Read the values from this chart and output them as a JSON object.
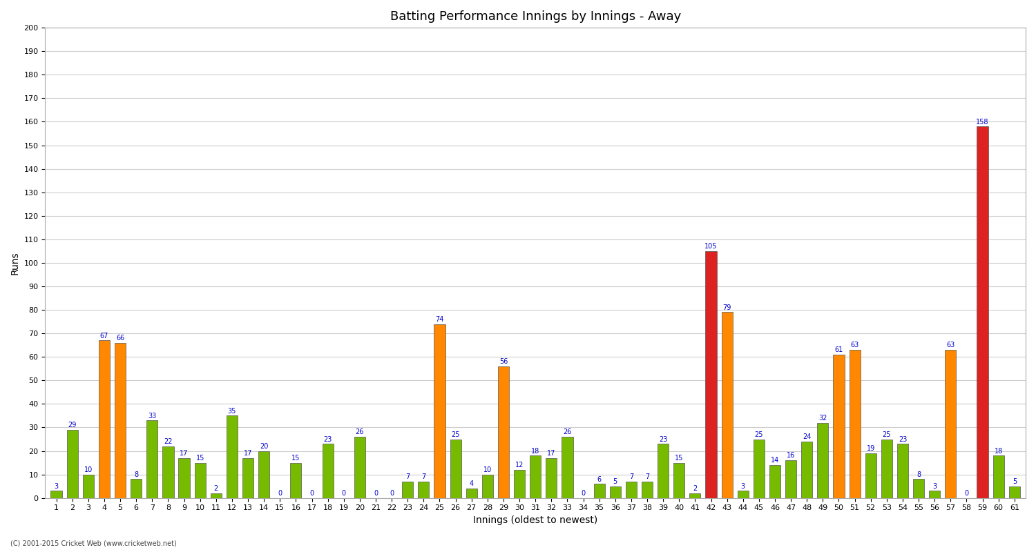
{
  "title": "Batting Performance Innings by Innings - Away",
  "xlabel": "Innings (oldest to newest)",
  "ylabel": "Runs",
  "ylim": [
    0,
    200
  ],
  "yticks": [
    0,
    10,
    20,
    30,
    40,
    50,
    60,
    70,
    80,
    90,
    100,
    110,
    120,
    130,
    140,
    150,
    160,
    170,
    180,
    190,
    200
  ],
  "footer": "(C) 2001-2015 Cricket Web (www.cricketweb.net)",
  "values": [
    3,
    29,
    10,
    67,
    66,
    8,
    33,
    22,
    17,
    15,
    2,
    35,
    17,
    20,
    0,
    15,
    0,
    23,
    0,
    26,
    0,
    0,
    7,
    7,
    74,
    25,
    4,
    10,
    56,
    12,
    18,
    17,
    26,
    0,
    6,
    5,
    7,
    7,
    23,
    15,
    2,
    105,
    79,
    3,
    25,
    14,
    16,
    24,
    32,
    61,
    63,
    19,
    25,
    23,
    8,
    3,
    63,
    0,
    158,
    18,
    5
  ],
  "labels": [
    "1",
    "2",
    "3",
    "4",
    "5",
    "6",
    "7",
    "8",
    "9",
    "10",
    "11",
    "12",
    "13",
    "14",
    "15",
    "16",
    "17",
    "18",
    "19",
    "20",
    "21",
    "22",
    "23",
    "24",
    "25",
    "26",
    "27",
    "28",
    "29",
    "30",
    "31",
    "32",
    "33",
    "34",
    "35",
    "36",
    "37",
    "38",
    "39",
    "40",
    "41",
    "42",
    "43",
    "44",
    "45",
    "46",
    "47",
    "48",
    "49",
    "50",
    "51",
    "52",
    "53",
    "54",
    "55",
    "56",
    "57",
    "58",
    "59",
    "60",
    "61"
  ],
  "colors": [
    "#77bb00",
    "#77bb00",
    "#77bb00",
    "#ff8800",
    "#ff8800",
    "#77bb00",
    "#77bb00",
    "#77bb00",
    "#77bb00",
    "#77bb00",
    "#77bb00",
    "#77bb00",
    "#77bb00",
    "#77bb00",
    "#77bb00",
    "#77bb00",
    "#ff8800",
    "#77bb00",
    "#ff8800",
    "#77bb00",
    "#ff8800",
    "#ff8800",
    "#77bb00",
    "#77bb00",
    "#ff8800",
    "#77bb00",
    "#77bb00",
    "#77bb00",
    "#ff8800",
    "#77bb00",
    "#77bb00",
    "#77bb00",
    "#77bb00",
    "#77bb00",
    "#77bb00",
    "#77bb00",
    "#77bb00",
    "#77bb00",
    "#77bb00",
    "#77bb00",
    "#77bb00",
    "#dd2222",
    "#ff8800",
    "#77bb00",
    "#77bb00",
    "#77bb00",
    "#77bb00",
    "#77bb00",
    "#77bb00",
    "#ff8800",
    "#ff8800",
    "#77bb00",
    "#77bb00",
    "#77bb00",
    "#77bb00",
    "#77bb00",
    "#ff8800",
    "#77bb00",
    "#dd2222",
    "#77bb00",
    "#77bb00"
  ],
  "background_color": "#ffffff",
  "grid_color": "#cccccc",
  "bar_edge_color": "#555555",
  "value_color": "#0000cc",
  "title_fontsize": 13,
  "axis_fontsize": 10,
  "tick_fontsize": 8,
  "value_fontsize": 7
}
